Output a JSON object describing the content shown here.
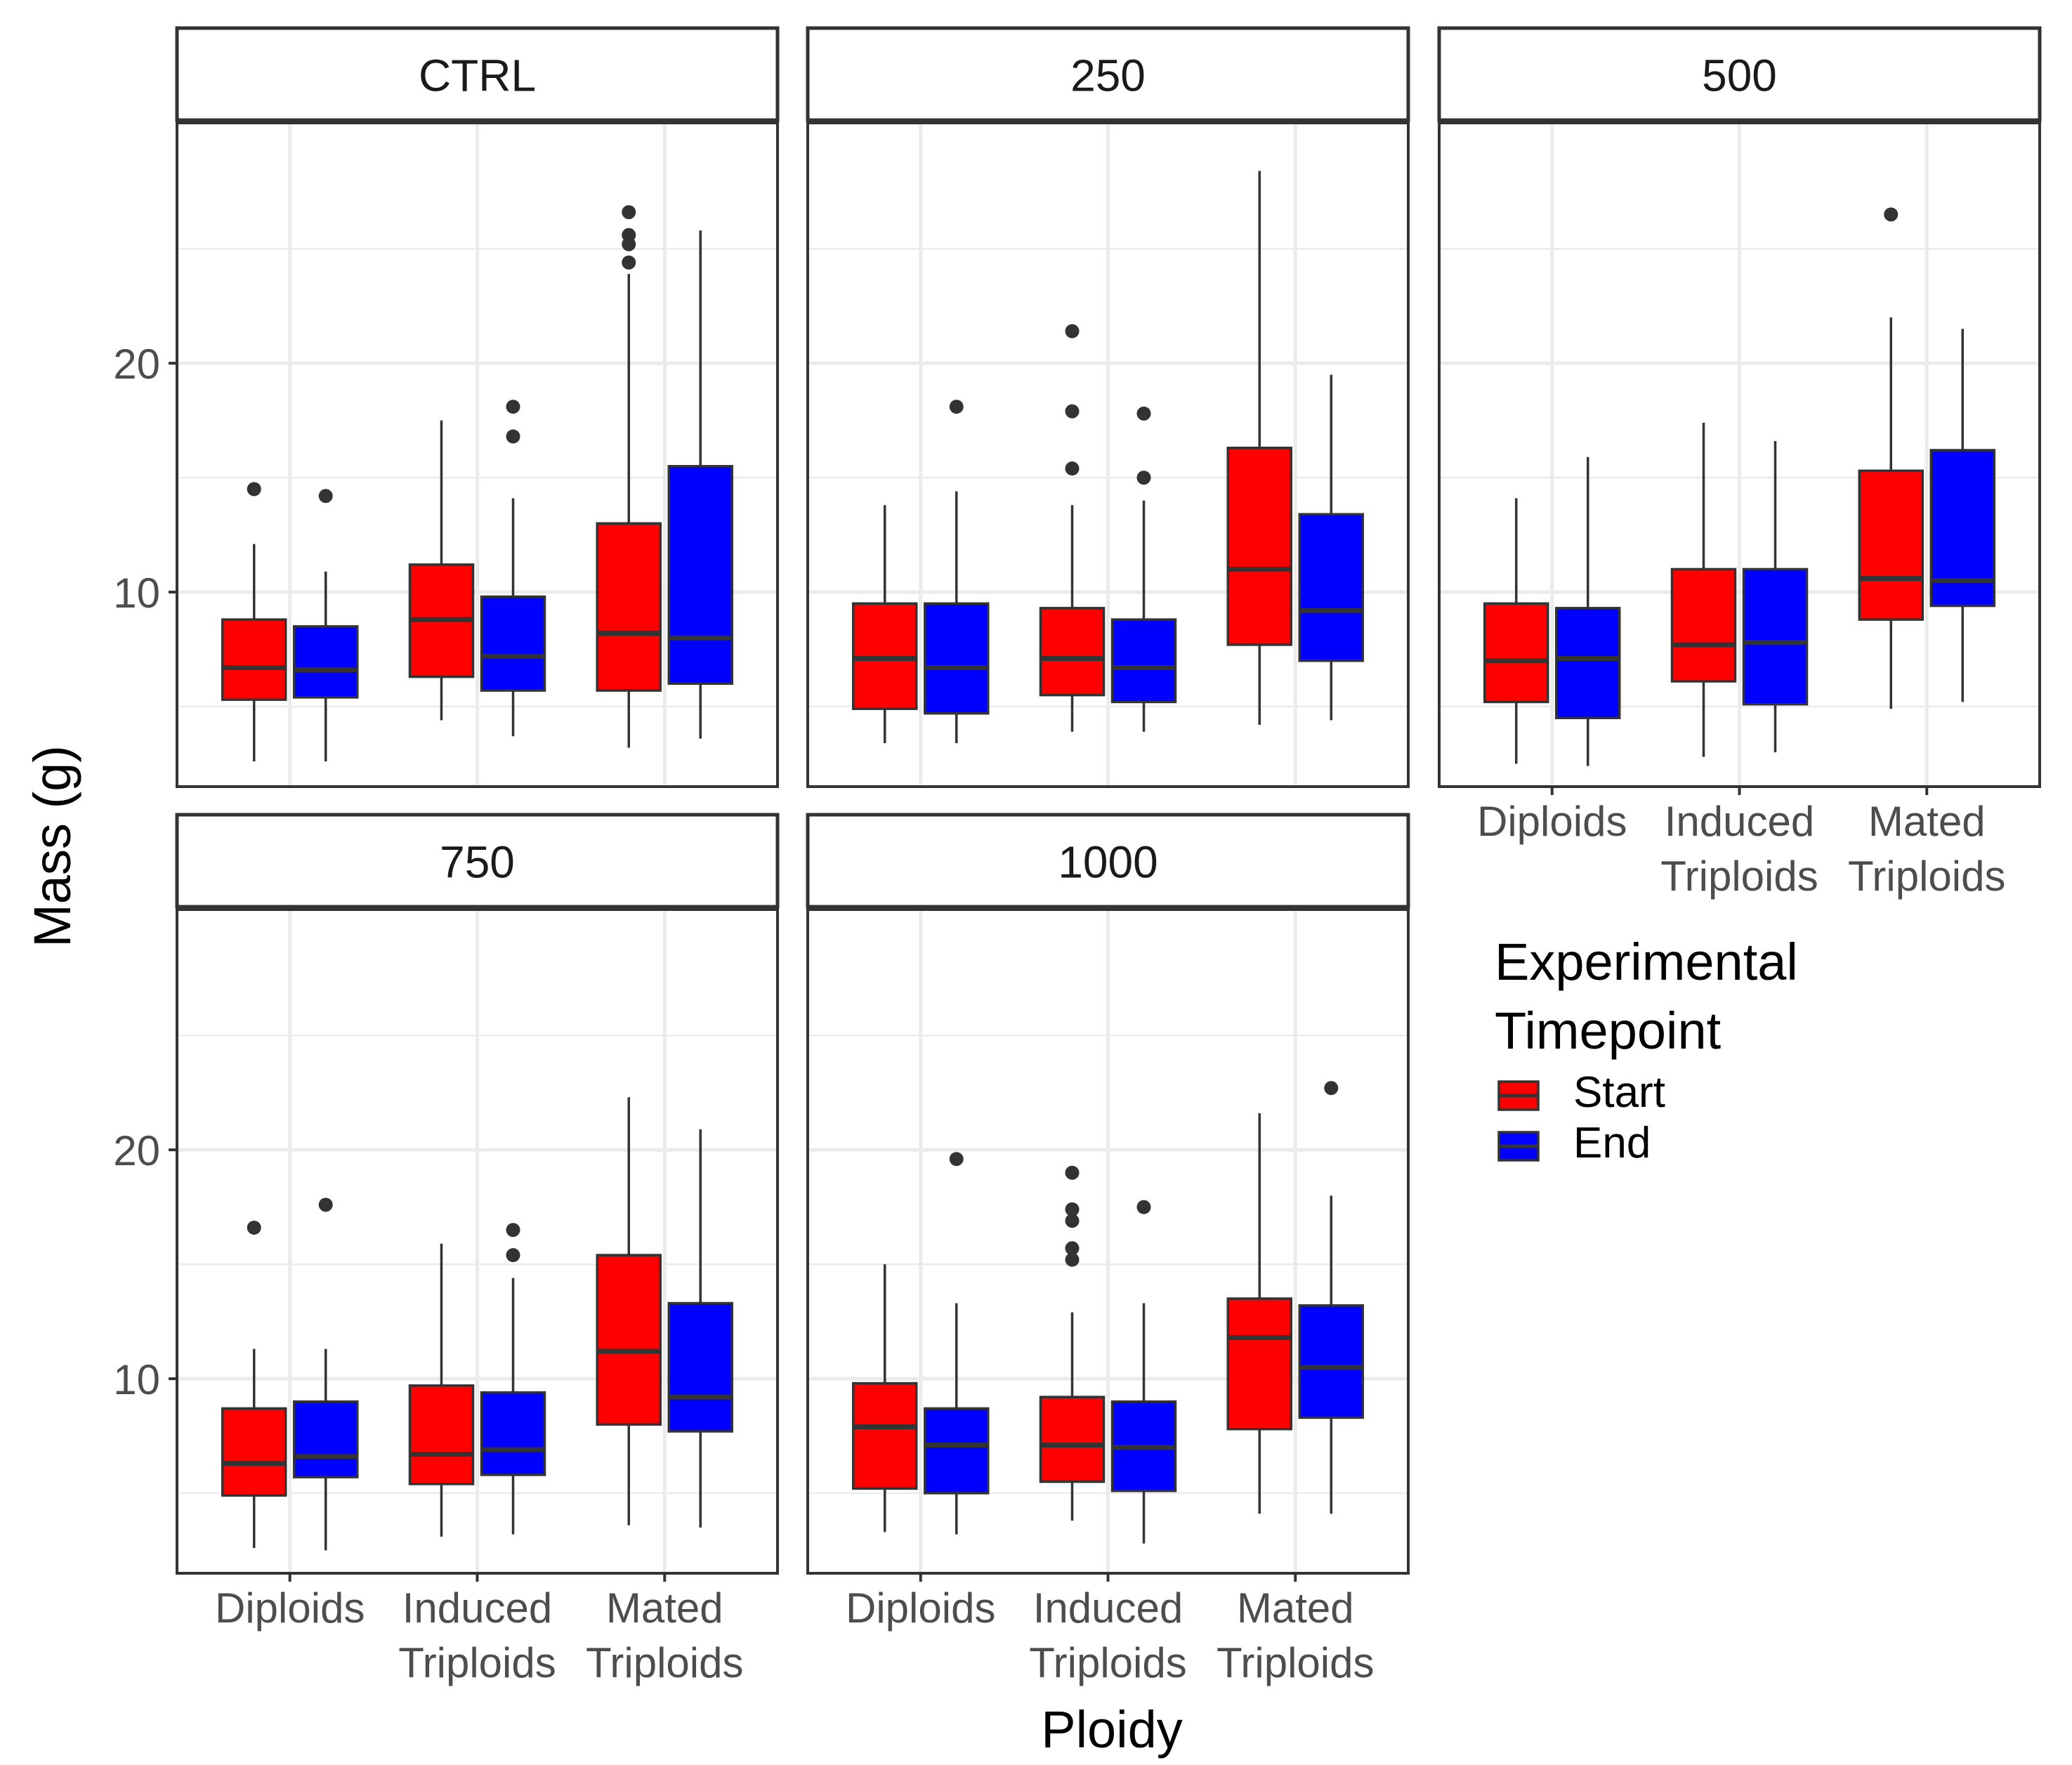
{
  "chart_data": {
    "type": "boxplot",
    "xlabel": "Ploidy",
    "ylabel": "Mass (g)",
    "ylim": [
      1.5,
      30.5
    ],
    "yticks": [
      10,
      20
    ],
    "categories": [
      "Diploids",
      "Induced Triploids",
      "Mated Triploids"
    ],
    "category_lines": [
      [
        "Diploids"
      ],
      [
        "Induced",
        "Triploids"
      ],
      [
        "Mated",
        "Triploids"
      ]
    ],
    "legend": {
      "title_lines": [
        "Experimental",
        "Timepoint"
      ],
      "entries": [
        {
          "name": "Start",
          "color": "#ff0000"
        },
        {
          "name": "End",
          "color": "#0000ff"
        }
      ]
    },
    "grid": true,
    "panels": [
      {
        "label": "CTRL",
        "groups": [
          {
            "category": "Diploids",
            "series": "Start",
            "whisker_low": 2.6,
            "q1": 5.3,
            "median": 6.7,
            "q3": 8.8,
            "whisker_high": 12.1,
            "outliers": [
              14.5
            ]
          },
          {
            "category": "Diploids",
            "series": "End",
            "whisker_low": 2.6,
            "q1": 5.4,
            "median": 6.6,
            "q3": 8.5,
            "whisker_high": 10.9,
            "outliers": [
              14.2
            ]
          },
          {
            "category": "Induced Triploids",
            "series": "Start",
            "whisker_low": 4.4,
            "q1": 6.3,
            "median": 8.8,
            "q3": 11.2,
            "whisker_high": 17.5,
            "outliers": []
          },
          {
            "category": "Induced Triploids",
            "series": "End",
            "whisker_low": 3.7,
            "q1": 5.7,
            "median": 7.2,
            "q3": 9.8,
            "whisker_high": 14.1,
            "outliers": [
              16.8,
              18.1
            ]
          },
          {
            "category": "Mated Triploids",
            "series": "Start",
            "whisker_low": 3.2,
            "q1": 5.7,
            "median": 8.2,
            "q3": 13.0,
            "whisker_high": 23.9,
            "outliers": [
              24.4,
              25.2,
              25.6,
              26.6
            ]
          },
          {
            "category": "Mated Triploids",
            "series": "End",
            "whisker_low": 3.6,
            "q1": 6.0,
            "median": 8.0,
            "q3": 15.5,
            "whisker_high": 25.8,
            "outliers": []
          }
        ]
      },
      {
        "label": "250",
        "groups": [
          {
            "category": "Diploids",
            "series": "Start",
            "whisker_low": 3.4,
            "q1": 4.9,
            "median": 7.1,
            "q3": 9.5,
            "whisker_high": 13.8,
            "outliers": []
          },
          {
            "category": "Diploids",
            "series": "End",
            "whisker_low": 3.4,
            "q1": 4.7,
            "median": 6.7,
            "q3": 9.5,
            "whisker_high": 14.4,
            "outliers": [
              18.1
            ]
          },
          {
            "category": "Induced Triploids",
            "series": "Start",
            "whisker_low": 3.9,
            "q1": 5.5,
            "median": 7.1,
            "q3": 9.3,
            "whisker_high": 13.8,
            "outliers": [
              15.4,
              17.9,
              21.4
            ]
          },
          {
            "category": "Induced Triploids",
            "series": "End",
            "whisker_low": 3.9,
            "q1": 5.2,
            "median": 6.7,
            "q3": 8.8,
            "whisker_high": 14.0,
            "outliers": [
              15.0,
              17.8
            ]
          },
          {
            "category": "Mated Triploids",
            "series": "Start",
            "whisker_low": 4.2,
            "q1": 7.7,
            "median": 11.0,
            "q3": 16.3,
            "whisker_high": 28.4,
            "outliers": []
          },
          {
            "category": "Mated Triploids",
            "series": "End",
            "whisker_low": 4.4,
            "q1": 7.0,
            "median": 9.2,
            "q3": 13.4,
            "whisker_high": 19.5,
            "outliers": []
          }
        ]
      },
      {
        "label": "500",
        "groups": [
          {
            "category": "Diploids",
            "series": "Start",
            "whisker_low": 2.5,
            "q1": 5.2,
            "median": 7.0,
            "q3": 9.5,
            "whisker_high": 14.1,
            "outliers": []
          },
          {
            "category": "Diploids",
            "series": "End",
            "whisker_low": 2.4,
            "q1": 4.5,
            "median": 7.1,
            "q3": 9.3,
            "whisker_high": 15.9,
            "outliers": []
          },
          {
            "category": "Induced Triploids",
            "series": "Start",
            "whisker_low": 2.8,
            "q1": 6.1,
            "median": 7.7,
            "q3": 11.0,
            "whisker_high": 17.4,
            "outliers": []
          },
          {
            "category": "Induced Triploids",
            "series": "End",
            "whisker_low": 3.0,
            "q1": 5.1,
            "median": 7.8,
            "q3": 11.0,
            "whisker_high": 16.6,
            "outliers": []
          },
          {
            "category": "Mated Triploids",
            "series": "Start",
            "whisker_low": 4.9,
            "q1": 8.8,
            "median": 10.6,
            "q3": 15.3,
            "whisker_high": 22.0,
            "outliers": [
              26.5
            ]
          },
          {
            "category": "Mated Triploids",
            "series": "End",
            "whisker_low": 5.2,
            "q1": 9.4,
            "median": 10.5,
            "q3": 16.2,
            "whisker_high": 21.5,
            "outliers": []
          }
        ]
      },
      {
        "label": "750",
        "groups": [
          {
            "category": "Diploids",
            "series": "Start",
            "whisker_low": 2.6,
            "q1": 4.9,
            "median": 6.3,
            "q3": 8.7,
            "whisker_high": 11.3,
            "outliers": [
              16.6
            ]
          },
          {
            "category": "Diploids",
            "series": "End",
            "whisker_low": 2.5,
            "q1": 5.7,
            "median": 6.6,
            "q3": 9.0,
            "whisker_high": 11.3,
            "outliers": [
              17.6
            ]
          },
          {
            "category": "Induced Triploids",
            "series": "Start",
            "whisker_low": 3.1,
            "q1": 5.4,
            "median": 6.7,
            "q3": 9.7,
            "whisker_high": 15.9,
            "outliers": []
          },
          {
            "category": "Induced Triploids",
            "series": "End",
            "whisker_low": 3.2,
            "q1": 5.8,
            "median": 6.9,
            "q3": 9.4,
            "whisker_high": 14.4,
            "outliers": [
              15.4,
              16.5
            ]
          },
          {
            "category": "Mated Triploids",
            "series": "Start",
            "whisker_low": 3.6,
            "q1": 8.0,
            "median": 11.2,
            "q3": 15.4,
            "whisker_high": 22.3,
            "outliers": []
          },
          {
            "category": "Mated Triploids",
            "series": "End",
            "whisker_low": 3.5,
            "q1": 7.7,
            "median": 9.2,
            "q3": 13.3,
            "whisker_high": 20.9,
            "outliers": []
          }
        ]
      },
      {
        "label": "1000",
        "groups": [
          {
            "category": "Diploids",
            "series": "Start",
            "whisker_low": 3.3,
            "q1": 5.2,
            "median": 7.9,
            "q3": 9.8,
            "whisker_high": 15.0,
            "outliers": []
          },
          {
            "category": "Diploids",
            "series": "End",
            "whisker_low": 3.2,
            "q1": 5.0,
            "median": 7.1,
            "q3": 8.7,
            "whisker_high": 13.3,
            "outliers": [
              19.6
            ]
          },
          {
            "category": "Induced Triploids",
            "series": "Start",
            "whisker_low": 3.8,
            "q1": 5.5,
            "median": 7.1,
            "q3": 9.2,
            "whisker_high": 12.9,
            "outliers": [
              15.2,
              15.7,
              16.9,
              17.4,
              19.0
            ]
          },
          {
            "category": "Induced Triploids",
            "series": "End",
            "whisker_low": 2.8,
            "q1": 5.1,
            "median": 7.0,
            "q3": 9.0,
            "whisker_high": 13.3,
            "outliers": [
              17.5
            ]
          },
          {
            "category": "Mated Triploids",
            "series": "Start",
            "whisker_low": 4.1,
            "q1": 7.8,
            "median": 11.8,
            "q3": 13.5,
            "whisker_high": 21.6,
            "outliers": []
          },
          {
            "category": "Mated Triploids",
            "series": "End",
            "whisker_low": 4.1,
            "q1": 8.3,
            "median": 10.5,
            "q3": 13.2,
            "whisker_high": 18.0,
            "outliers": [
              22.7
            ]
          }
        ]
      }
    ]
  }
}
